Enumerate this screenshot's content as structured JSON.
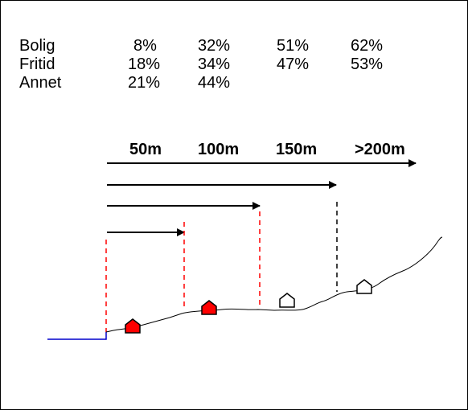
{
  "table": {
    "rows": [
      {
        "label": "Bolig",
        "values": [
          "8%",
          "32%",
          "51%",
          "62%"
        ]
      },
      {
        "label": "Fritid",
        "values": [
          "18%",
          "34%",
          "47%",
          "53%"
        ]
      },
      {
        "label": "Annet",
        "values": [
          "21%",
          "44%"
        ]
      }
    ]
  },
  "distances": [
    "50m",
    "100m",
    "150m",
    ">200m"
  ],
  "houses": [
    {
      "fill": "#ff0000"
    },
    {
      "fill": "#ff0000"
    },
    {
      "fill": "#ffffff"
    },
    {
      "fill": "#ffffff"
    }
  ],
  "colors": {
    "dash_red": "#ff0000",
    "dash_black": "#000000",
    "water_line": "#0000cc"
  }
}
